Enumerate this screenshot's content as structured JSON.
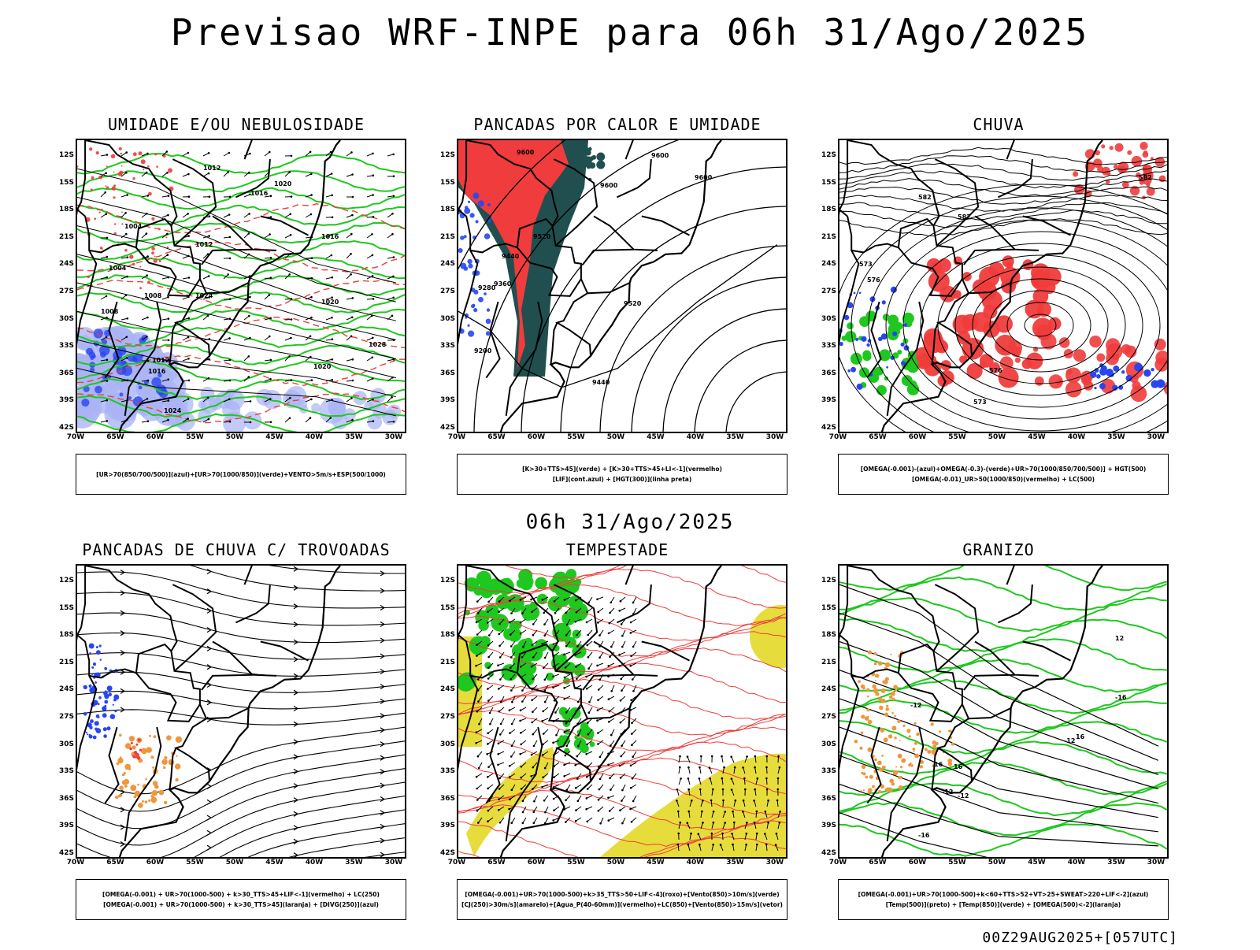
{
  "title": "Previsao WRF-INPE  para 06h 31/Ago/2025",
  "subtitle": "06h 31/Ago/2025",
  "footer": "00Z29AUG2025+[057UTC]",
  "axes": {
    "lat_labels": [
      "12S",
      "15S",
      "18S",
      "21S",
      "24S",
      "27S",
      "30S",
      "33S",
      "36S",
      "39S",
      "42S"
    ],
    "lon_labels": [
      "70W",
      "65W",
      "60W",
      "55W",
      "50W",
      "45W",
      "40W",
      "35W",
      "30W"
    ]
  },
  "colors": {
    "red": "#f03c3c",
    "green": "#1ec81e",
    "blue": "#2846f0",
    "lightblue": "#aab4f5",
    "darkteal": "#214f4f",
    "yellow": "#e6dc3c",
    "orange": "#f0963c"
  },
  "panels": [
    {
      "title": "UMIDADE E/OU NEBULOSIDADE",
      "legend": [
        "[UR>70(850/700/500)](azul)+[UR>70(1000/850)](verde)+VENTO>5m/s+ESP(500/1000)"
      ],
      "contour_labels": [
        "1012",
        "1020",
        "1016",
        "1004",
        "1012",
        "1008",
        "1024",
        "1016",
        "1028",
        "1020",
        "1012",
        "1020",
        "1024",
        "1016",
        "1008",
        "1004"
      ]
    },
    {
      "title": "PANCADAS POR CALOR E UMIDADE",
      "legend": [
        "[K>30+TTS>45](verde) + [K>30+TTS>45+LI<-1](vermelho)",
        "[LIF](cont.azul) + [HGT(300)](linha preta)"
      ],
      "contour_labels": [
        "9600",
        "9600",
        "9600",
        "9600",
        "9520",
        "9440",
        "9360",
        "9280",
        "9200",
        "9520",
        "9440"
      ]
    },
    {
      "title": "CHUVA",
      "legend": [
        "[OMEGA(-0.001)-(azul)+OMEGA(-0.3)-(verde)+UR>70(1000/850/700/500)] + HGT(500)",
        "[OMEGA(-0.01)_UR>50(1000/850)(vermelho) + LC(500)"
      ],
      "contour_labels": [
        "582",
        "582",
        "582",
        "573",
        "576",
        "576",
        "573"
      ]
    },
    {
      "title": "PANCADAS DE CHUVA C/ TROVOADAS",
      "legend": [
        "[OMEGA(-0.001) + UR>70(1000-500) + k>30_TTS>45+LIF<-1](vermelho) + LC(250)",
        "[OMEGA(-0.001) + UR>70(1000-500) + k>30_TTS>45](laranja) + [DIVG(250)](azul)"
      ],
      "contour_labels": []
    },
    {
      "title": "TEMPESTADE",
      "legend": [
        "[OMEGA(-0.001)+UR>70(1000-500)+k>35_TTS>50+LIF<-4](roxo)+[Vento(850)>10m/s](verde)",
        "[CJ(250)>30m/s](amarelo)+[Agua_P(40-60mm)](vermelho)+LC(850)+[Vento(850)>15m/s](vetor)"
      ],
      "contour_labels": []
    },
    {
      "title": "GRANIZO",
      "legend": [
        "[OMEGA(-0.001)+UR>70(1000-500)+k<60+TTS>52+VT>25+SWEAT>220+LIF<-2](azul)",
        "[Temp(500)](preto) + [Temp(850)](verde) + [OMEGA(500)<-2](laranja)"
      ],
      "contour_labels": [
        "-12",
        "-12",
        "-16",
        "-12",
        "-12",
        "-16",
        "16",
        "16",
        "16",
        "12"
      ]
    }
  ]
}
